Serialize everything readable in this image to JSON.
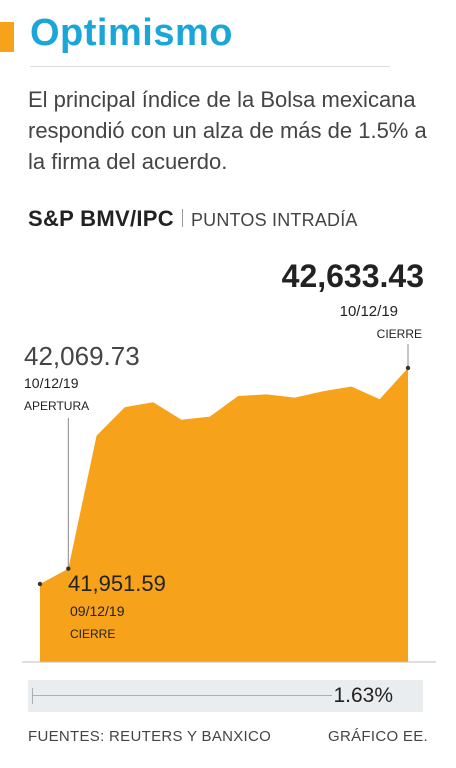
{
  "header": {
    "title": "Optimismo",
    "subtitle": "El principal índice de la Bolsa mexicana respondió con un alza de más de 1.5% a la firma del acuerdo."
  },
  "chart_header": {
    "name": "S&P BMV/IPC",
    "unit": "PUNTOS INTRADÍA"
  },
  "chart_data": {
    "type": "area",
    "color": "#F7A21B",
    "series": [
      {
        "values": [
          41951.59,
          42000,
          42420,
          42510,
          42525,
          42470,
          42480,
          42545,
          42550,
          42540,
          42560,
          42575,
          42535,
          42633.43
        ]
      }
    ],
    "annotations": [
      {
        "id": "prev_close",
        "value": "41,951.59",
        "date": "09/12/19",
        "label": "CIERRE"
      },
      {
        "id": "open",
        "value": "42,069.73",
        "date": "10/12/19",
        "label": "APERTURA"
      },
      {
        "id": "close",
        "value": "42,633.43",
        "date": "10/12/19",
        "label": "CIERRE"
      }
    ],
    "grid": false
  },
  "change": {
    "value": "1.63%",
    "level": 0.76
  },
  "footer": {
    "source": "FUENTES: REUTERS Y BANXICO",
    "credit": "GRÁFICO EE."
  }
}
